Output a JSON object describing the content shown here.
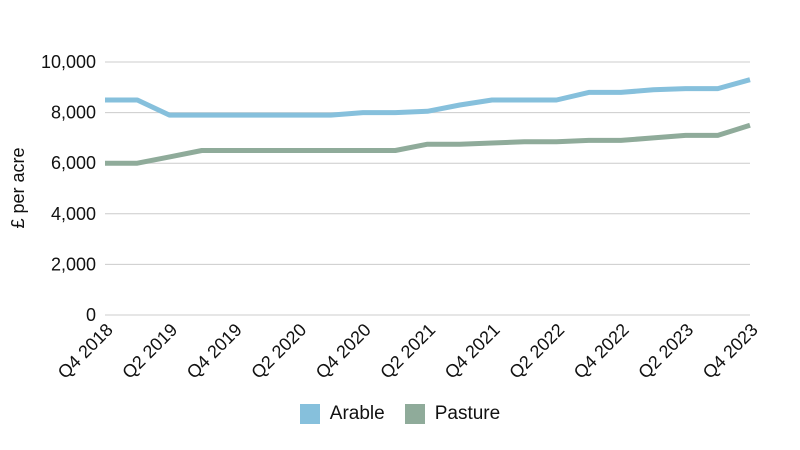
{
  "chart_data": {
    "type": "line",
    "ylabel": "£ per acre",
    "xlabel": "",
    "ylim": [
      0,
      10000
    ],
    "yticks": [
      "0",
      "2,000",
      "4,000",
      "6,000",
      "8,000",
      "10,000"
    ],
    "ytick_values": [
      0,
      2000,
      4000,
      6000,
      8000,
      10000
    ],
    "categories": [
      "Q4 2018",
      "Q1 2019",
      "Q2 2019",
      "Q3 2019",
      "Q4 2019",
      "Q1 2020",
      "Q2 2020",
      "Q3 2020",
      "Q4 2020",
      "Q1 2021",
      "Q2 2021",
      "Q3 2021",
      "Q4 2021",
      "Q1 2022",
      "Q2 2022",
      "Q3 2022",
      "Q4 2022",
      "Q1 2023",
      "Q2 2023",
      "Q3 2023",
      "Q4 2023"
    ],
    "xtick_labels": [
      "Q4 2018",
      "Q2 2019",
      "Q4 2019",
      "Q2 2020",
      "Q4 2020",
      "Q2 2021",
      "Q4 2021",
      "Q2 2022",
      "Q4 2022",
      "Q2 2023",
      "Q4 2023"
    ],
    "grid": true,
    "legend_position": "bottom",
    "series": [
      {
        "name": "Arable",
        "color": "#86c0dc",
        "values": [
          8500,
          8500,
          7900,
          7900,
          7900,
          7900,
          7900,
          7900,
          8000,
          8000,
          8050,
          8300,
          8500,
          8500,
          8500,
          8800,
          8800,
          8900,
          8950,
          8950,
          9300
        ]
      },
      {
        "name": "Pasture",
        "color": "#8fab9a",
        "values": [
          6000,
          6000,
          6250,
          6500,
          6500,
          6500,
          6500,
          6500,
          6500,
          6500,
          6750,
          6750,
          6800,
          6850,
          6850,
          6900,
          6900,
          7000,
          7100,
          7100,
          7500
        ]
      }
    ]
  }
}
